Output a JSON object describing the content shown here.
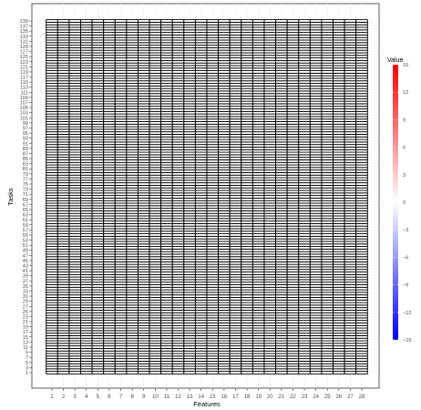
{
  "chart_data": {
    "type": "heatmap",
    "title": "",
    "xlabel": "Features",
    "ylabel": "Tasks",
    "x_categories": [
      "1",
      "2",
      "3",
      "4",
      "5",
      "6",
      "7",
      "8",
      "9",
      "10",
      "11",
      "12",
      "13",
      "14",
      "15",
      "16",
      "17",
      "18",
      "19",
      "20",
      "21",
      "22",
      "23",
      "24",
      "25",
      "26",
      "27",
      "28"
    ],
    "y_categories": [
      "1",
      "2",
      "3",
      "4",
      "5",
      "6",
      "7",
      "8",
      "9",
      "10",
      "11",
      "12",
      "13",
      "14",
      "15",
      "16",
      "17",
      "18",
      "19",
      "20",
      "21",
      "22",
      "23",
      "24",
      "25",
      "26",
      "27",
      "28",
      "29",
      "30",
      "31",
      "32",
      "33",
      "34",
      "35",
      "36",
      "37",
      "38",
      "39",
      "40",
      "41",
      "42",
      "43",
      "44",
      "45",
      "46",
      "47",
      "48",
      "49",
      "50",
      "51",
      "52",
      "53",
      "54",
      "55",
      "56",
      "57",
      "58",
      "59",
      "60",
      "61",
      "62",
      "63",
      "64",
      "65",
      "66",
      "67",
      "68",
      "69",
      "70",
      "71",
      "72",
      "73",
      "74",
      "75",
      "76",
      "77",
      "78",
      "79",
      "80",
      "81",
      "82",
      "83",
      "84",
      "85",
      "86",
      "87",
      "88",
      "89",
      "90",
      "91",
      "92",
      "93",
      "94",
      "95",
      "96",
      "97",
      "98",
      "99",
      "100",
      "101",
      "102",
      "103",
      "104",
      "105",
      "106",
      "107",
      "108",
      "109",
      "110",
      "111",
      "112",
      "113",
      "114",
      "115",
      "116",
      "117",
      "118",
      "119",
      "120",
      "121",
      "122",
      "123",
      "124",
      "125",
      "126",
      "127",
      "128",
      "129",
      "130",
      "131",
      "132",
      "133",
      "134",
      "135",
      "136",
      "137",
      "138",
      "139"
    ],
    "y_tick_labels_shown": [
      "1",
      "3",
      "5",
      "7",
      "9",
      "11",
      "13",
      "15",
      "17",
      "19",
      "21",
      "23",
      "25",
      "27",
      "29",
      "31",
      "33",
      "35",
      "37",
      "39",
      "41",
      "43",
      "45",
      "47",
      "49",
      "51",
      "53",
      "55",
      "57",
      "59",
      "61",
      "63",
      "65",
      "67",
      "69",
      "71",
      "73",
      "75",
      "77",
      "79",
      "81",
      "83",
      "85",
      "87",
      "89",
      "91",
      "93",
      "95",
      "97",
      "99",
      "101",
      "103",
      "105",
      "107",
      "109",
      "111",
      "113",
      "115",
      "117",
      "119",
      "121",
      "123",
      "125",
      "127",
      "129",
      "131",
      "133",
      "135",
      "137",
      "139"
    ],
    "fill_value": 0,
    "values_note": "",
    "value_range": [
      -15,
      15
    ],
    "grid": true,
    "legend": {
      "title": "Value",
      "placement": "right",
      "ticks": [
        -15,
        -12,
        -9,
        -6,
        -3,
        0,
        3,
        6,
        9,
        12,
        15
      ],
      "colors": {
        "low": "#0000ff",
        "mid": "#ffffff",
        "high": "#ff0000"
      }
    },
    "cell_border_color": "#000000",
    "panel_border_color": "#333333",
    "gridline_color": "#ebebeb"
  }
}
